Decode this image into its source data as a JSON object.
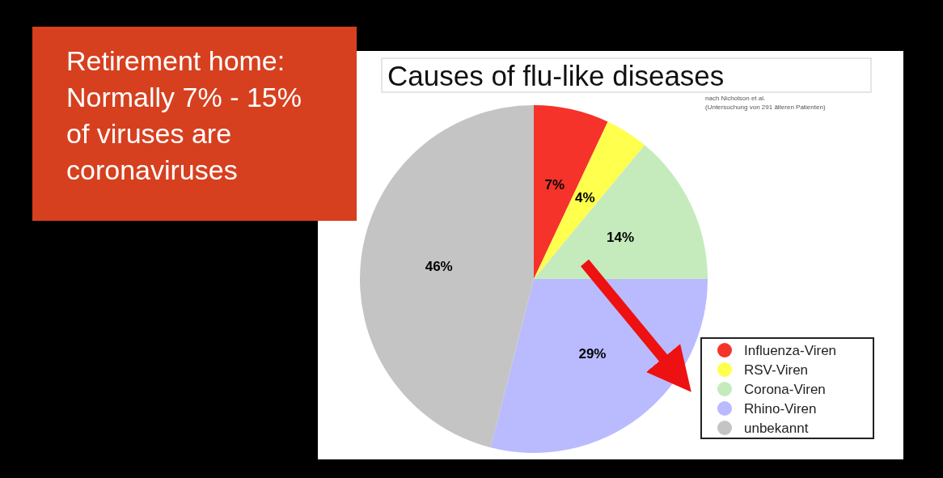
{
  "chart_data": {
    "type": "pie",
    "title": "Causes of flu-like diseases",
    "categories": [
      "Influenza-Viren",
      "RSV-Viren",
      "Corona-Viren",
      "Rhino-Viren",
      "unbekannt"
    ],
    "values": [
      7,
      4,
      14,
      29,
      46
    ],
    "colors": [
      "#f5332a",
      "#ffff4d",
      "#c5ebbd",
      "#babaff",
      "#c4c4c4"
    ],
    "value_labels": [
      "7%",
      "4%",
      "14%",
      "29%",
      "46%"
    ],
    "legend": "bottom right",
    "annotations": [
      "Retirement home: Normally 7% - 15% of viruses are coronaviruses",
      "nach Nicholson et al.",
      "(Untersuchung von 291 älteren Patienten)"
    ]
  }
}
